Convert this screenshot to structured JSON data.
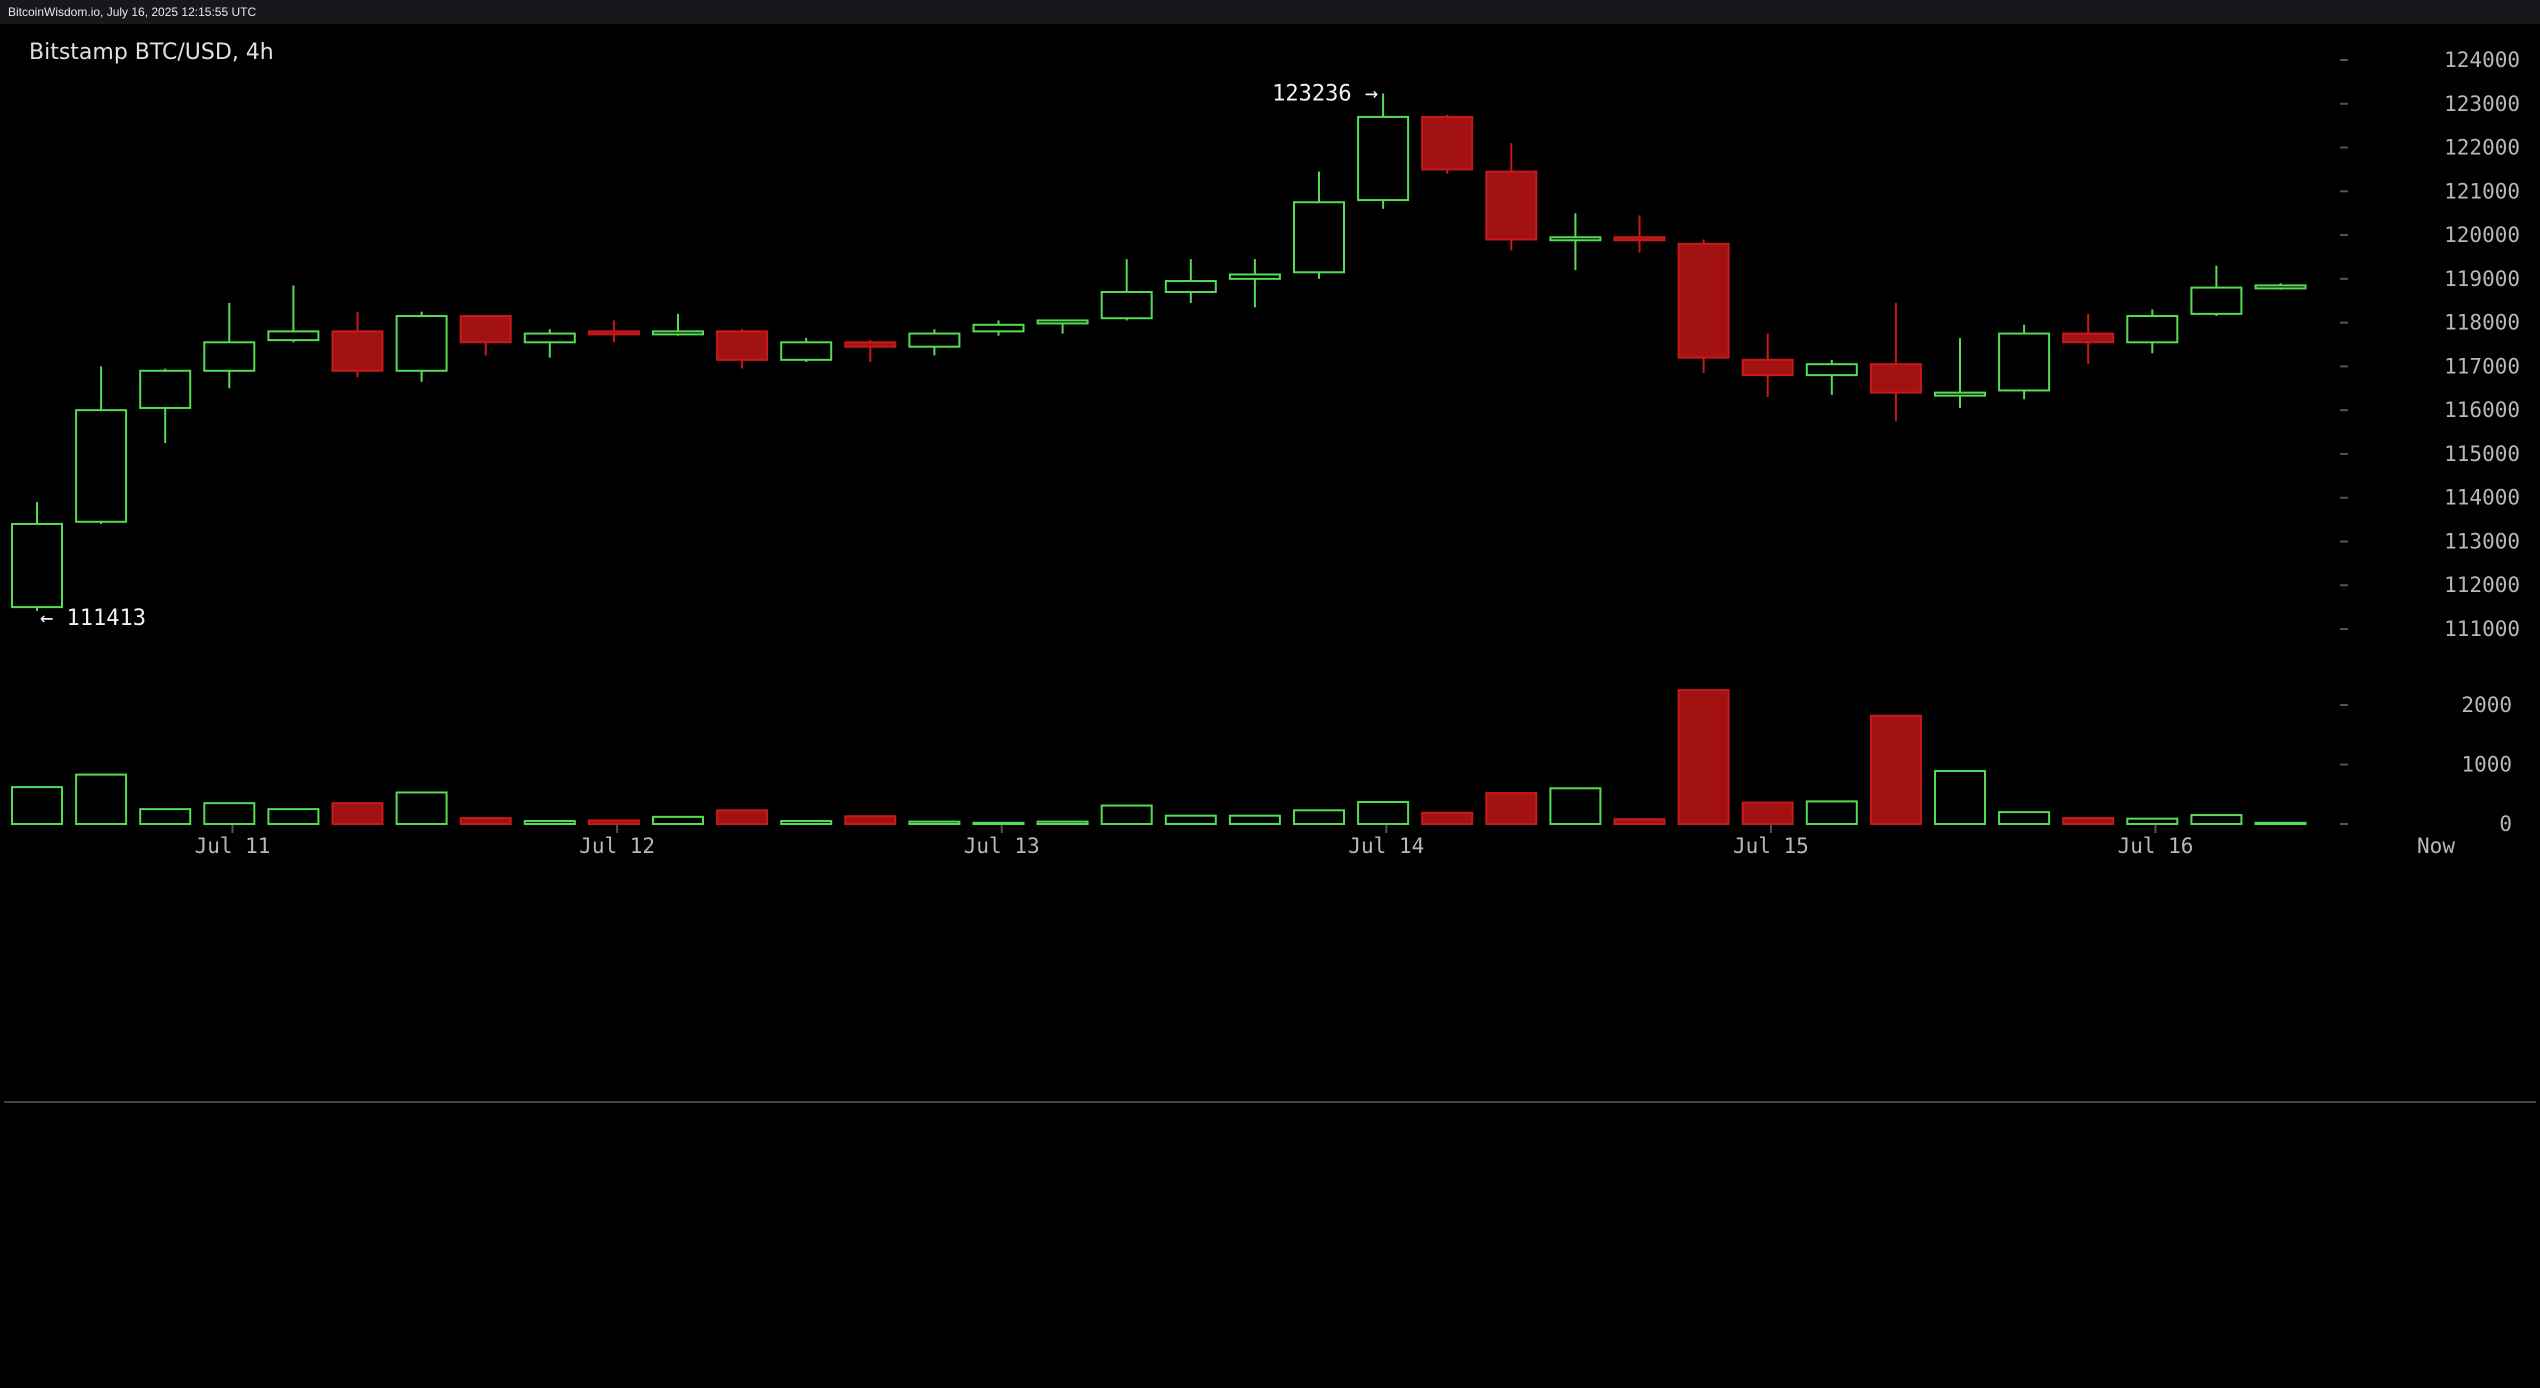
{
  "page": {
    "header_text": "BitcoinWisdom.io, July 16, 2025 12:15:55 UTC"
  },
  "colors": {
    "background": "#000000",
    "bull": "#55dd55",
    "bear": "#a31212",
    "bear_border": "#c81a1a",
    "axis_text": "#b8b8b8",
    "tick_mark": "#555555",
    "separator": "#444444"
  },
  "chart_data": [
    {
      "type": "candlestick",
      "title": "Bitstamp BTC/USD, 4h",
      "interval": "4h",
      "ylim": [
        110000,
        124600
      ],
      "yticks": [
        111000,
        112000,
        113000,
        114000,
        115000,
        116000,
        117000,
        118000,
        119000,
        120000,
        121000,
        122000,
        123000,
        124000
      ],
      "ytick_labels": [
        "111000",
        "112000",
        "113000",
        "114000",
        "115000",
        "116000",
        "117000",
        "118000",
        "119000",
        "120000",
        "121000",
        "122000",
        "123000",
        "124000"
      ],
      "x_labels": [
        "Jul 11",
        "Jul 12",
        "Jul 13",
        "Jul 14",
        "Jul 15",
        "Jul 16",
        "Now"
      ],
      "grid": false,
      "annotations": [
        {
          "text": "123236 →",
          "value": 123236,
          "candle_index": 21
        },
        {
          "text": "← 111413",
          "value": 111413,
          "candle_index": 0
        }
      ],
      "candles": [
        {
          "o": 111500,
          "h": 113900,
          "l": 111413,
          "c": 113400
        },
        {
          "o": 113450,
          "h": 117000,
          "l": 113400,
          "c": 116000
        },
        {
          "o": 116050,
          "h": 116950,
          "l": 115250,
          "c": 116900
        },
        {
          "o": 116900,
          "h": 118450,
          "l": 116500,
          "c": 117550
        },
        {
          "o": 117600,
          "h": 118850,
          "l": 117550,
          "c": 117800
        },
        {
          "o": 117800,
          "h": 118250,
          "l": 116750,
          "c": 116900
        },
        {
          "o": 116900,
          "h": 118250,
          "l": 116650,
          "c": 118150
        },
        {
          "o": 118150,
          "h": 118150,
          "l": 117250,
          "c": 117550
        },
        {
          "o": 117550,
          "h": 117850,
          "l": 117200,
          "c": 117750
        },
        {
          "o": 117800,
          "h": 118050,
          "l": 117550,
          "c": 117750
        },
        {
          "o": 117750,
          "h": 118200,
          "l": 117700,
          "c": 117800
        },
        {
          "o": 117800,
          "h": 117850,
          "l": 116950,
          "c": 117150
        },
        {
          "o": 117150,
          "h": 117650,
          "l": 117100,
          "c": 117550
        },
        {
          "o": 117550,
          "h": 117600,
          "l": 117100,
          "c": 117450
        },
        {
          "o": 117450,
          "h": 117850,
          "l": 117250,
          "c": 117750
        },
        {
          "o": 117800,
          "h": 118050,
          "l": 117700,
          "c": 117950
        },
        {
          "o": 118000,
          "h": 118050,
          "l": 117750,
          "c": 118050
        },
        {
          "o": 118100,
          "h": 119450,
          "l": 118050,
          "c": 118700
        },
        {
          "o": 118700,
          "h": 119450,
          "l": 118450,
          "c": 118950
        },
        {
          "o": 119000,
          "h": 119450,
          "l": 118350,
          "c": 119100
        },
        {
          "o": 119150,
          "h": 121450,
          "l": 119000,
          "c": 120750
        },
        {
          "o": 120800,
          "h": 123236,
          "l": 120600,
          "c": 122700
        },
        {
          "o": 122700,
          "h": 122750,
          "l": 121400,
          "c": 121500
        },
        {
          "o": 121450,
          "h": 122100,
          "l": 119650,
          "c": 119900
        },
        {
          "o": 119900,
          "h": 120500,
          "l": 119200,
          "c": 119950
        },
        {
          "o": 119950,
          "h": 120450,
          "l": 119600,
          "c": 119900
        },
        {
          "o": 119800,
          "h": 119900,
          "l": 116850,
          "c": 117200
        },
        {
          "o": 117150,
          "h": 117750,
          "l": 116300,
          "c": 116800
        },
        {
          "o": 116800,
          "h": 117150,
          "l": 116350,
          "c": 117050
        },
        {
          "o": 117050,
          "h": 118450,
          "l": 115750,
          "c": 116400
        },
        {
          "o": 116350,
          "h": 117650,
          "l": 116050,
          "c": 116400
        },
        {
          "o": 116450,
          "h": 117950,
          "l": 116250,
          "c": 117750
        },
        {
          "o": 117750,
          "h": 118200,
          "l": 117050,
          "c": 117550
        },
        {
          "o": 117550,
          "h": 118300,
          "l": 117300,
          "c": 118150
        },
        {
          "o": 118200,
          "h": 119300,
          "l": 118150,
          "c": 118800
        },
        {
          "o": 118800,
          "h": 118900,
          "l": 118750,
          "c": 118850
        }
      ]
    },
    {
      "type": "bar",
      "title": "",
      "ylim": [
        0,
        2150
      ],
      "yticks": [
        0,
        1000,
        2000
      ],
      "ytick_labels": [
        "0",
        "1000",
        "2000"
      ],
      "volumes": [
        620,
        830,
        250,
        350,
        250,
        350,
        530,
        100,
        50,
        60,
        120,
        230,
        50,
        130,
        40,
        20,
        40,
        310,
        140,
        140,
        230,
        370,
        190,
        520,
        600,
        80,
        2250,
        360,
        380,
        1820,
        890,
        200,
        100,
        90,
        150,
        20
      ]
    }
  ]
}
